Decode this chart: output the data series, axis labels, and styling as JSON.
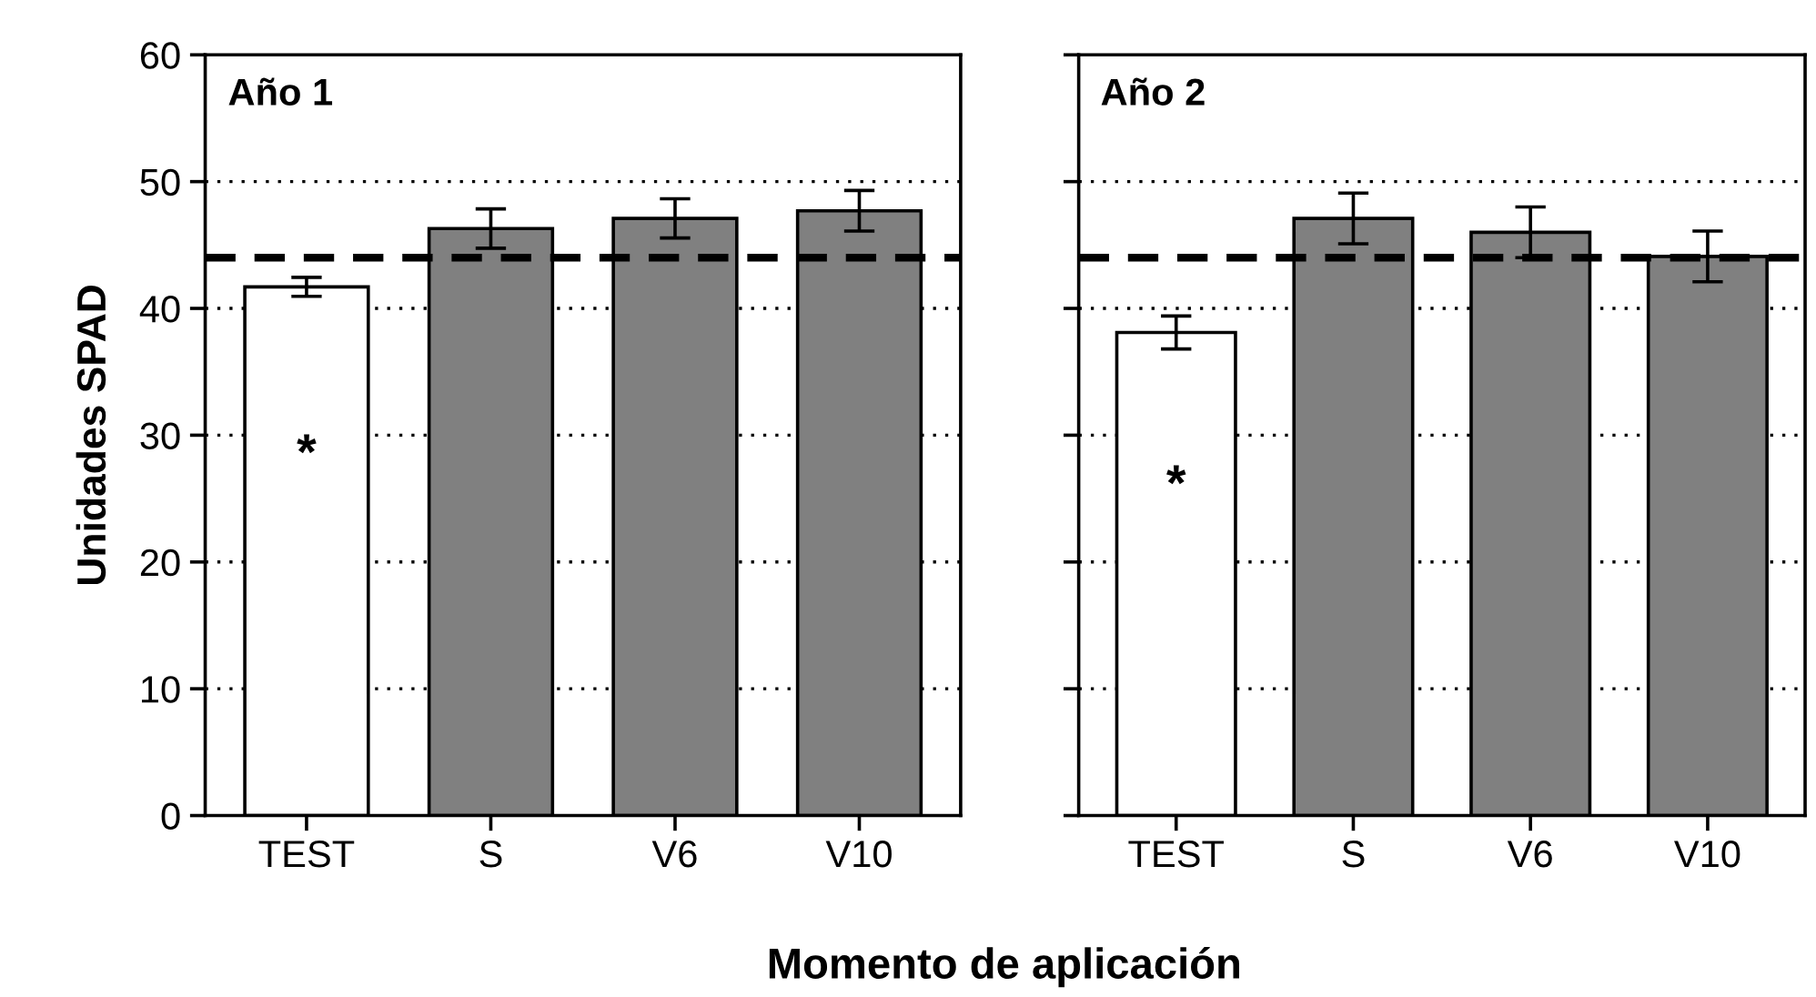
{
  "chart_data": [
    {
      "type": "bar",
      "title": "Año 1",
      "ylabel": "Unidades SPAD",
      "xlabel": "Momento de aplicación",
      "categories": [
        "TEST",
        "S",
        "V6",
        "V10"
      ],
      "values": [
        41.7,
        46.3,
        47.1,
        47.7
      ],
      "errors": [
        0.75,
        1.55,
        1.55,
        1.6
      ],
      "colors": [
        "#ffffff",
        "#808080",
        "#808080",
        "#808080"
      ],
      "ylim": [
        0,
        60
      ],
      "yticks": [
        0,
        10,
        20,
        30,
        40,
        50,
        60
      ],
      "grid": "y",
      "ref_lines": [
        {
          "axis": "y",
          "value": 44,
          "label": null,
          "color": "#000000",
          "line_style": "dashed"
        }
      ],
      "annotations": [
        "*"
      ]
    },
    {
      "type": "bar",
      "title": "Año 2",
      "categories": [
        "TEST",
        "S",
        "V6",
        "V10"
      ],
      "values": [
        38.1,
        47.1,
        46.0,
        44.1
      ],
      "errors": [
        1.3,
        2.0,
        2.0,
        2.0
      ],
      "colors": [
        "#ffffff",
        "#808080",
        "#808080",
        "#808080"
      ],
      "ylim": [
        0,
        60
      ],
      "yticks": [
        0,
        10,
        20,
        30,
        40,
        50,
        60
      ],
      "grid": "y",
      "tick_labels": "x",
      "ref_lines": [
        {
          "axis": "y",
          "value": 44,
          "label": null,
          "color": "#000000",
          "line_style": "dashed"
        }
      ],
      "annotations": [
        "*"
      ]
    }
  ]
}
